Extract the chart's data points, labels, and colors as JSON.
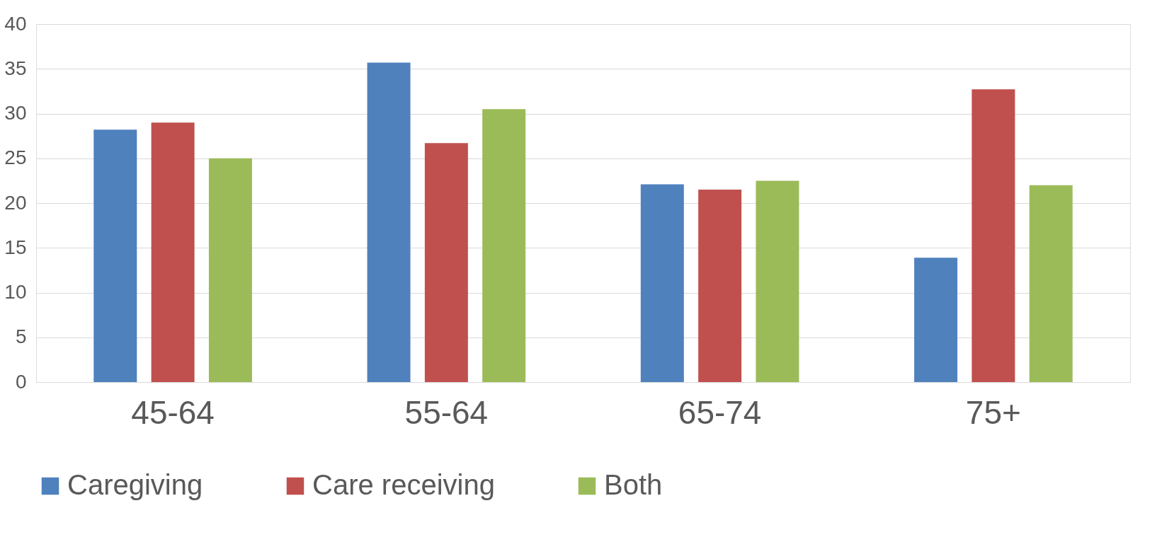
{
  "chart_data": {
    "type": "bar",
    "categories": [
      "45-64",
      "55-64",
      "65-74",
      "75+"
    ],
    "series": [
      {
        "name": "Caregiving",
        "color": "#4f81bd",
        "values": [
          28.2,
          35.7,
          22.1,
          13.9
        ]
      },
      {
        "name": "Care receiving",
        "color": "#c0504d",
        "values": [
          29.0,
          26.7,
          21.5,
          32.7
        ]
      },
      {
        "name": "Both",
        "color": "#9bbb59",
        "values": [
          25.0,
          30.5,
          22.5,
          22.0
        ]
      }
    ],
    "ylim": [
      0,
      40
    ],
    "yticks": [
      0,
      5,
      10,
      15,
      20,
      25,
      30,
      35,
      40
    ],
    "grid": "y",
    "legend": "bottom"
  }
}
